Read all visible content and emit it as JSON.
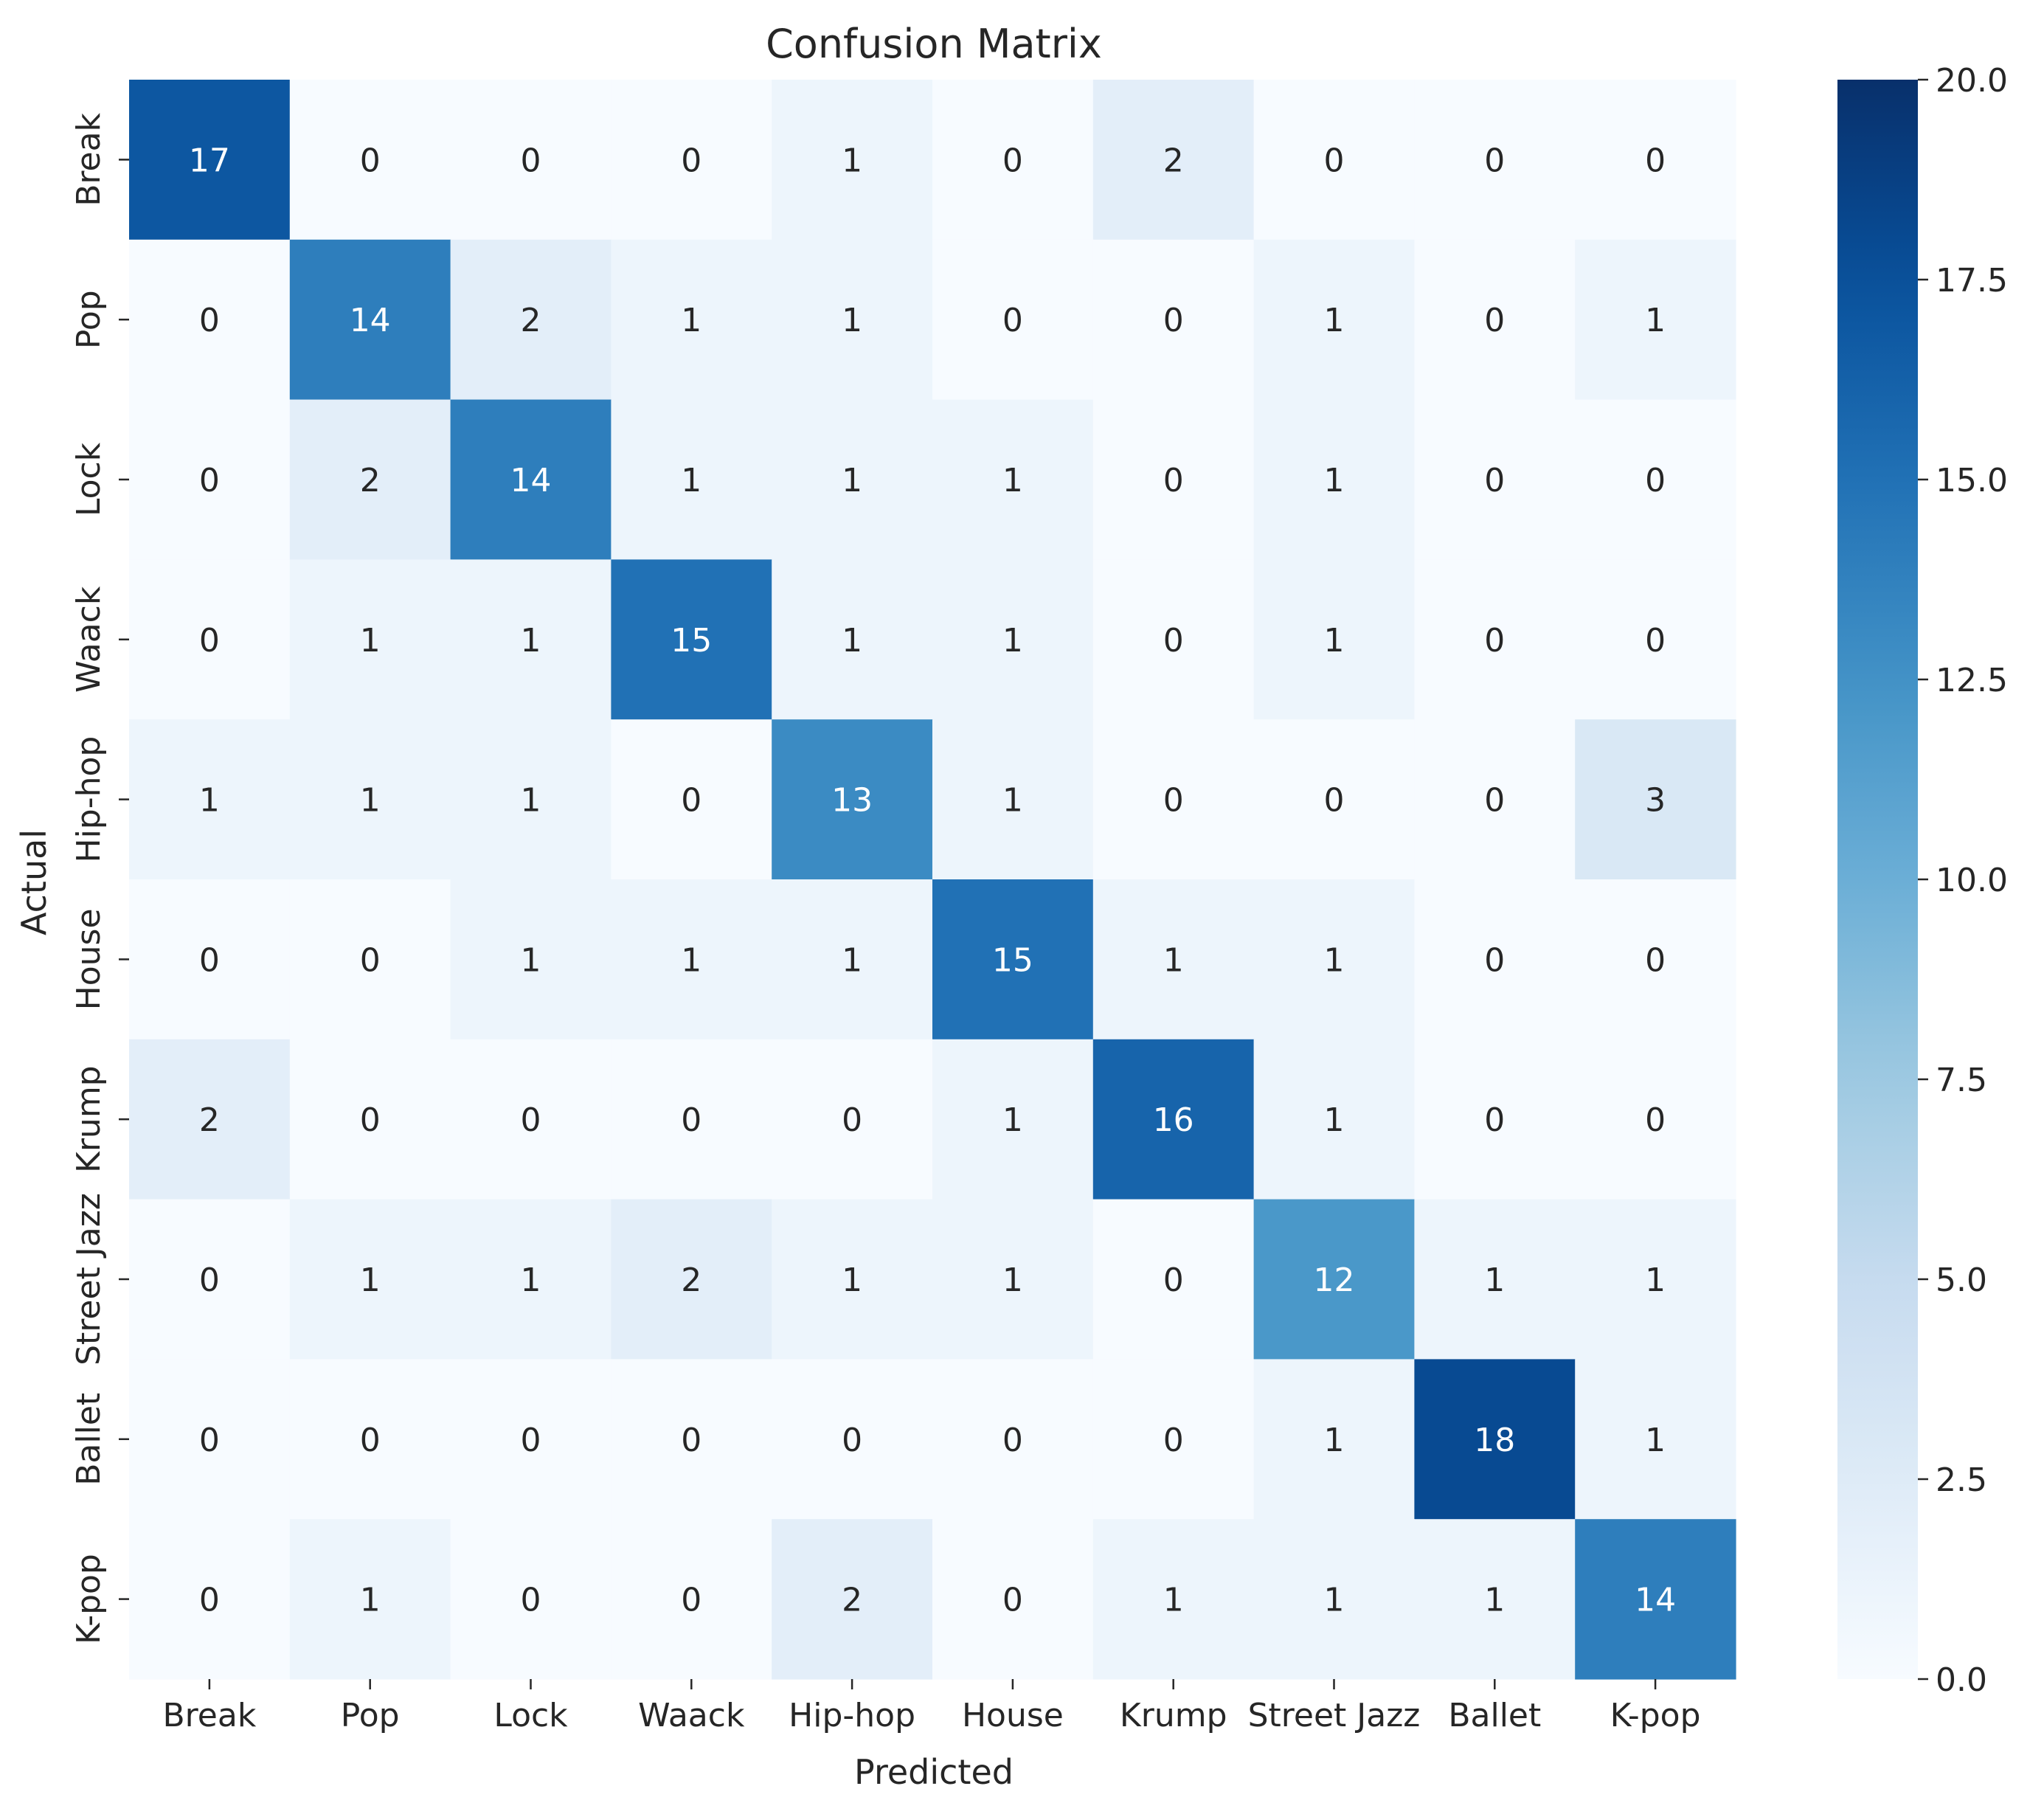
{
  "chart_data": {
    "type": "heatmap",
    "title": "Confusion Matrix",
    "xlabel": "Predicted",
    "ylabel": "Actual",
    "x_categories": [
      "Break",
      "Pop",
      "Lock",
      "Waack",
      "Hip-hop",
      "House",
      "Krump",
      "Street Jazz",
      "Ballet",
      "K-pop"
    ],
    "y_categories": [
      "Break",
      "Pop",
      "Lock",
      "Waack",
      "Hip-hop",
      "House",
      "Krump",
      "Street Jazz",
      "Ballet",
      "K-pop"
    ],
    "matrix": [
      [
        17,
        0,
        0,
        0,
        1,
        0,
        2,
        0,
        0,
        0
      ],
      [
        0,
        14,
        2,
        1,
        1,
        0,
        0,
        1,
        0,
        1
      ],
      [
        0,
        2,
        14,
        1,
        1,
        1,
        0,
        1,
        0,
        0
      ],
      [
        0,
        1,
        1,
        15,
        1,
        1,
        0,
        1,
        0,
        0
      ],
      [
        1,
        1,
        1,
        0,
        13,
        1,
        0,
        0,
        0,
        3
      ],
      [
        0,
        0,
        1,
        1,
        1,
        15,
        1,
        1,
        0,
        0
      ],
      [
        2,
        0,
        0,
        0,
        0,
        1,
        16,
        1,
        0,
        0
      ],
      [
        0,
        1,
        1,
        2,
        1,
        1,
        0,
        12,
        1,
        1
      ],
      [
        0,
        0,
        0,
        0,
        0,
        0,
        0,
        1,
        18,
        1
      ],
      [
        0,
        1,
        0,
        0,
        2,
        0,
        1,
        1,
        1,
        14
      ]
    ],
    "colorbar": {
      "range": [
        0,
        20
      ],
      "ticks": [
        "0.0",
        "2.5",
        "5.0",
        "7.5",
        "10.0",
        "12.5",
        "15.0",
        "17.5",
        "20.0"
      ],
      "colormap": "Blues"
    },
    "colors": {
      "low": "#f7fbff",
      "high": "#08306b",
      "text_dark": "#262626",
      "text_light": "#ffffff"
    }
  }
}
